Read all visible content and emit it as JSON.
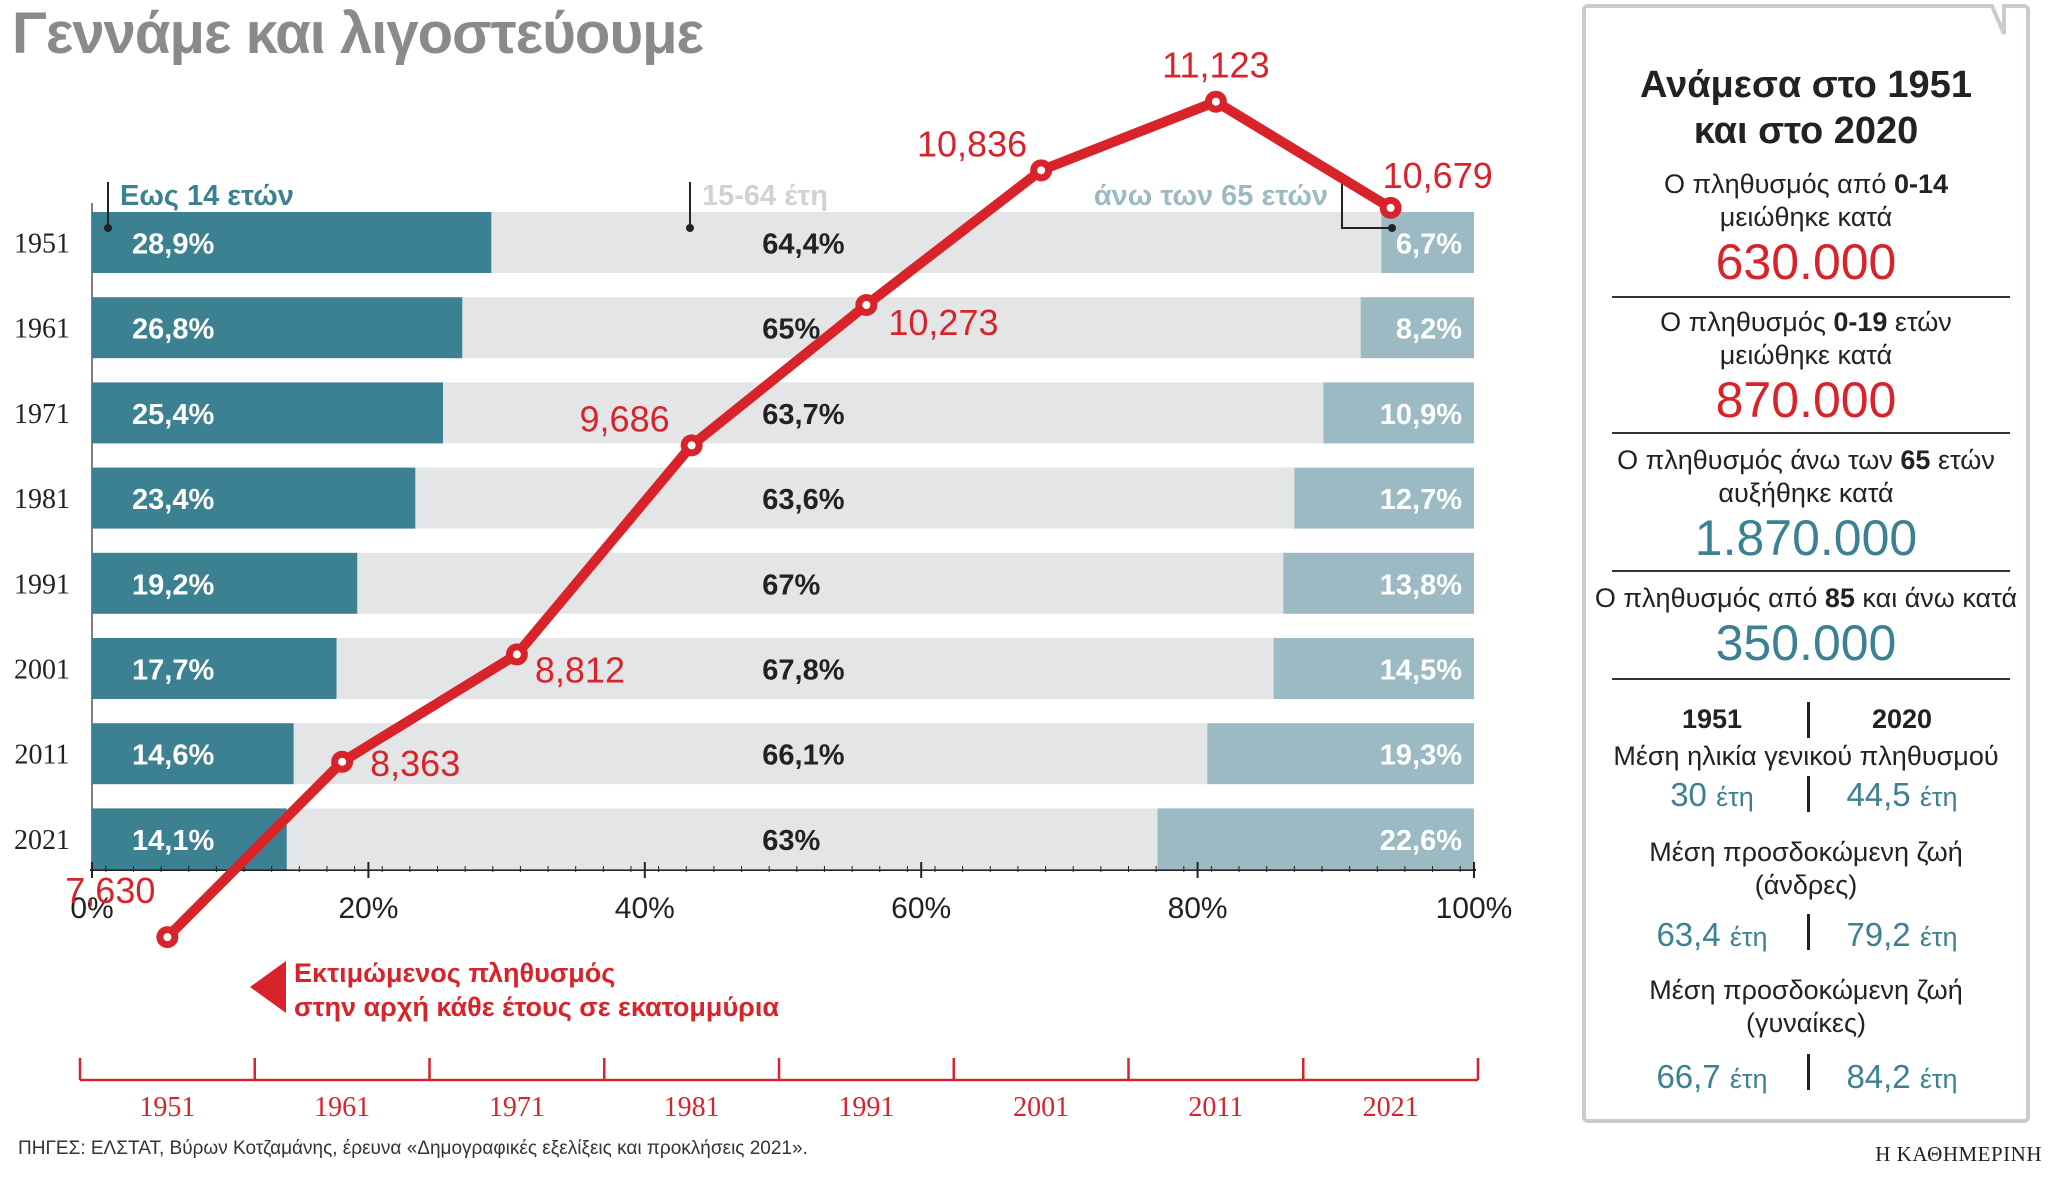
{
  "title": "Γεννάμε και λιγοστεύουμε",
  "colors": {
    "young": "#3b8191",
    "mid": "#e4e5e6",
    "old": "#9cbac4",
    "line": "#d8232a",
    "teal_text": "#3b8191"
  },
  "chart_data": {
    "type": "stacked-bar-with-line",
    "years": [
      "1951",
      "1961",
      "1971",
      "1981",
      "1991",
      "2001",
      "2011",
      "2021"
    ],
    "series": [
      {
        "name": "Εως 14 ετών",
        "values": [
          28.9,
          26.8,
          25.4,
          23.4,
          19.2,
          17.7,
          14.6,
          14.1
        ],
        "labels": [
          "28,9%",
          "26,8%",
          "25,4%",
          "23,4%",
          "19,2%",
          "17,7%",
          "14,6%",
          "14,1%"
        ]
      },
      {
        "name": "15-64 έτη",
        "values": [
          64.4,
          65,
          63.7,
          63.6,
          67,
          67.8,
          66.1,
          63
        ],
        "labels": [
          "64,4%",
          "65%",
          "63,7%",
          "63,6%",
          "67%",
          "67,8%",
          "66,1%",
          "63%"
        ]
      },
      {
        "name": "άνω των 65 ετών",
        "values": [
          6.7,
          8.2,
          10.9,
          12.7,
          13.8,
          14.5,
          19.3,
          22.6
        ],
        "labels": [
          "6,7%",
          "8,2%",
          "10,9%",
          "12,7%",
          "13,8%",
          "14,5%",
          "19,3%",
          "22,6%"
        ]
      }
    ],
    "xaxis": {
      "min": 0,
      "max": 100,
      "ticks": [
        "0%",
        "20%",
        "40%",
        "60%",
        "80%",
        "100%"
      ]
    },
    "population": {
      "name": "Εκτιμώμενος πληθυσμός στην αρχή κάθε έτους σε εκατομμύρια",
      "legend_line1": "Εκτιμώμενος πληθυσμός",
      "legend_line2": "στην αρχή κάθε έτους σε εκατομμύρια",
      "values": [
        7.63,
        8.363,
        8.812,
        9.686,
        10.273,
        10.836,
        11.123,
        10.679
      ],
      "labels": [
        "7,630",
        "8,363",
        "8,812",
        "9,686",
        "10,273",
        "10,836",
        "11,123",
        "10,679"
      ],
      "ylim": [
        7.25,
        11.45
      ]
    }
  },
  "panel": {
    "heading_line1": "Ανάμεσα στο 1951",
    "heading_line2": "και στο 2020",
    "facts": [
      {
        "pre": "Ο πληθυσμός από ",
        "bold": "0-14",
        "post": "",
        "line2": "μειώθηκε κατά",
        "value": "630.000",
        "color": "red"
      },
      {
        "pre": "Ο πληθυσμός ",
        "bold": "0-19",
        "post": " ετών",
        "line2": "μειώθηκε κατά",
        "value": "870.000",
        "color": "red"
      },
      {
        "pre": "Ο πληθυσμός άνω των ",
        "bold": "65",
        "post": " ετών",
        "line2": "αυξήθηκε κατά",
        "value": "1.870.000",
        "color": "teal"
      },
      {
        "pre": "Ο πληθυσμός από ",
        "bold": "85",
        "post": " και άνω κατά",
        "line2": "",
        "value": "350.000",
        "color": "teal"
      }
    ],
    "compare": {
      "year_a": "1951",
      "year_b": "2020",
      "rows": [
        {
          "label_line1": "Μέση ηλικία γενικού πληθυσμού",
          "label_line2": "",
          "a": "30",
          "b": "44,5",
          "unit": "έτη"
        },
        {
          "label_line1": "Μέση προσδοκώμενη ζωή",
          "label_line2": "(άνδρες)",
          "a": "63,4",
          "b": "79,2",
          "unit": "έτη"
        },
        {
          "label_line1": "Μέση προσδοκώμενη ζωή",
          "label_line2": "(γυναίκες)",
          "a": "66,7",
          "b": "84,2",
          "unit": "έτη"
        }
      ]
    }
  },
  "sources": "ΠΗΓΕΣ: ΕΛΣΤΑΤ, Βύρων Κοτζαμάνης, έρευνα «Δημογραφικές εξελίξεις και προκλήσεις 2021».",
  "brand": "Η ΚΑΘΗΜΕΡΙΝΗ"
}
